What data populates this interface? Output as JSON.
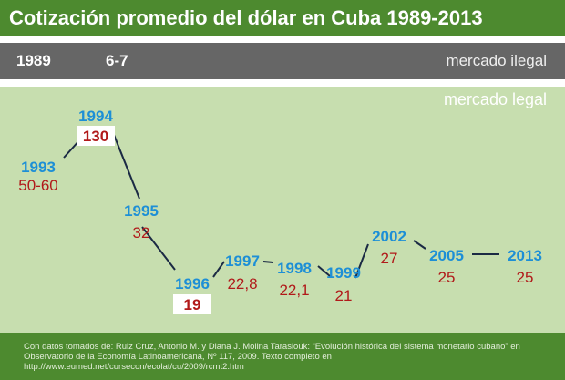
{
  "title": "Cotización promedio del dólar en Cuba 1989-2013",
  "illegal": {
    "year": "1989",
    "value": "6-7",
    "label": "mercado ilegal"
  },
  "legal_label": "mercado legal",
  "chart_data": {
    "type": "line",
    "x": [
      "1993",
      "1994",
      "1995",
      "1996",
      "1997",
      "1998",
      "1999",
      "2002",
      "2005",
      "2013"
    ],
    "value_labels": [
      "50-60",
      "130",
      "32",
      "19",
      "22,8",
      "22,1",
      "21",
      "27",
      "25",
      "25"
    ],
    "highlighted": [
      "1994",
      "1996"
    ],
    "colors": {
      "year": "#1d8fd6",
      "value": "#b11a1a",
      "line": "#1b2a44"
    }
  },
  "footer": "Con datos tomados de: Ruiz Cruz, Antonio M. y Diana J. Molina Tarasiouk: “Evolución histórica del sistema monetario cubano” en Observatorio de la Economía Latinoamericana, Nº 117, 2009. Texto completo en http://www.eumed.net/cursecon/ecolat/cu/2009/rcmt2.htm"
}
